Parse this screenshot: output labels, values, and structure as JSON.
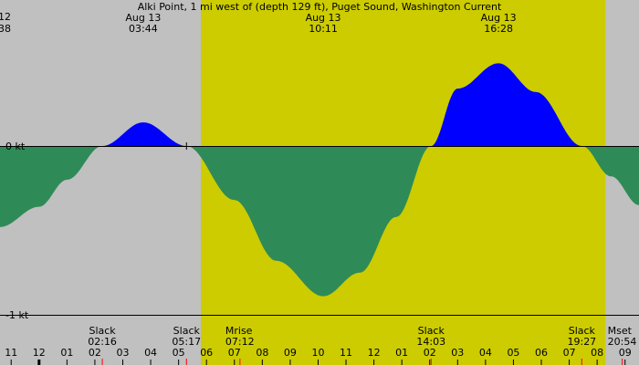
{
  "chart_data": {
    "type": "area",
    "title": "Alki Point, 1 mi west of (depth 129 ft), Puget Sound, Washington Current",
    "xlabel": "",
    "ylabel": "",
    "x_unit": "hour of day, Aug 13 (0 = midnight)",
    "xlim": [
      -1.4,
      21.5
    ],
    "ylim": [
      -1.0,
      1.0
    ],
    "y_ticks": [
      {
        "value": 0,
        "label": "0 kt"
      },
      {
        "value": -1,
        "label": "-1 kt"
      }
    ],
    "daylight": {
      "start": 5.8,
      "end": 20.3
    },
    "series": [
      {
        "x": [
          -1.4,
          0.0,
          1.0,
          2.267,
          3.733,
          5.283,
          7.0,
          8.5,
          10.183,
          11.5,
          12.8,
          14.05,
          15.0,
          16.467,
          17.8,
          19.45,
          20.5,
          21.5
        ],
        "values": [
          -0.48,
          -0.36,
          -0.2,
          0.0,
          0.14,
          0.0,
          -0.32,
          -0.68,
          -0.89,
          -0.75,
          -0.42,
          0.0,
          0.34,
          0.49,
          0.32,
          0.0,
          -0.18,
          -0.35
        ]
      }
    ],
    "top_events": [
      {
        "date": "Aug 13",
        "time": "03:44",
        "x": 3.733
      },
      {
        "date": "Aug 13",
        "time": "10:11",
        "x": 10.183
      },
      {
        "date": "Aug 13",
        "time": "16:28",
        "x": 16.467
      }
    ],
    "top_left_fragment": {
      "line1": "12",
      "line2": "38"
    },
    "bottom_events": [
      {
        "name": "Slack",
        "time": "02:16",
        "x": 2.267
      },
      {
        "name": "Slack",
        "time": "05:17",
        "x": 5.283
      },
      {
        "name": "Mrise",
        "time": "07:12",
        "x": 7.2,
        "align": "start"
      },
      {
        "name": "Slack",
        "time": "14:03",
        "x": 14.05
      },
      {
        "name": "Slack",
        "time": "19:27",
        "x": 19.45
      },
      {
        "name": "Mset",
        "time": "20:54",
        "x": 20.9,
        "align": "start"
      }
    ],
    "hour_ticks": [
      {
        "label": "11",
        "x": -1.0
      },
      {
        "label": "12",
        "x": 0.0
      },
      {
        "label": "01",
        "x": 1.0
      },
      {
        "label": "02",
        "x": 2.0
      },
      {
        "label": "03",
        "x": 3.0
      },
      {
        "label": "04",
        "x": 4.0
      },
      {
        "label": "05",
        "x": 5.0
      },
      {
        "label": "06",
        "x": 6.0
      },
      {
        "label": "07",
        "x": 7.0
      },
      {
        "label": "08",
        "x": 8.0
      },
      {
        "label": "09",
        "x": 9.0
      },
      {
        "label": "10",
        "x": 10.0
      },
      {
        "label": "11",
        "x": 11.0
      },
      {
        "label": "12",
        "x": 12.0
      },
      {
        "label": "01",
        "x": 13.0
      },
      {
        "label": "02",
        "x": 14.0
      },
      {
        "label": "03",
        "x": 15.0
      },
      {
        "label": "04",
        "x": 16.0
      },
      {
        "label": "05",
        "x": 17.0
      },
      {
        "label": "06",
        "x": 18.0
      },
      {
        "label": "07",
        "x": 19.0
      },
      {
        "label": "08",
        "x": 20.0
      },
      {
        "label": "09",
        "x": 21.0
      }
    ],
    "event_marks": [
      2.267,
      5.283,
      7.2,
      14.05,
      19.45,
      20.9
    ],
    "colors": {
      "night": "#c0c0c0",
      "day": "#cccc00",
      "flood": "#0000ff",
      "ebb": "#2e8b57",
      "marks": "#ff0000"
    }
  }
}
